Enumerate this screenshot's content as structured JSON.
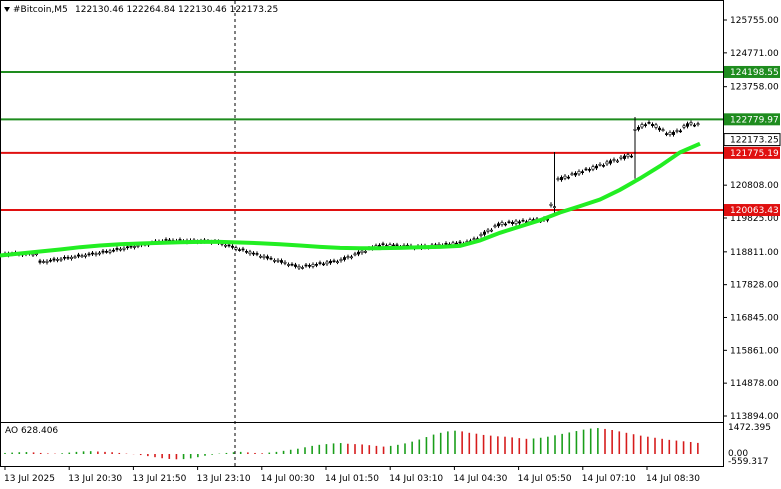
{
  "header": {
    "symbol": "#Bitcoin,M5",
    "ohlc": "122130.46 122264.84 122130.46 122173.25"
  },
  "price_axis": {
    "labels": [
      "125755.00",
      "124771.00",
      "123758.00",
      "120808.00",
      "119825.00",
      "118811.00",
      "117828.00",
      "116845.00",
      "115861.00",
      "114878.00",
      "113894.00"
    ]
  },
  "levels": [
    {
      "label": "124198.55",
      "color": "#1e8c1e"
    },
    {
      "label": "122779.97",
      "color": "#1e8c1e"
    },
    {
      "label": "121775.19",
      "color": "#e01010"
    },
    {
      "label": "120063.43",
      "color": "#e01010"
    }
  ],
  "current_price": {
    "label": "122173.25"
  },
  "indicator": {
    "title": "AO 628.406",
    "axis_labels": [
      "1472.395",
      "0.00",
      "-559.317"
    ]
  },
  "time_axis": {
    "labels": [
      "13 Jul 2025",
      "13 Jul 20:30",
      "13 Jul 21:50",
      "13 Jul 23:10",
      "14 Jul 00:30",
      "14 Jul 01:50",
      "14 Jul 03:10",
      "14 Jul 04:30",
      "14 Jul 05:50",
      "14 Jul 07:10",
      "14 Jul 08:30"
    ]
  },
  "chart_data": {
    "type": "line",
    "series_line": {
      "x": [
        0,
        20,
        40,
        60,
        80,
        100,
        120,
        140,
        160,
        180,
        200,
        220,
        240,
        260,
        280,
        300,
        320,
        340,
        360,
        380,
        400,
        420,
        440,
        460,
        480,
        500,
        520,
        540,
        560,
        580,
        600,
        620,
        640,
        660,
        680,
        700
      ],
      "y": [
        118700,
        118760,
        118820,
        118880,
        118950,
        119000,
        119040,
        119060,
        119080,
        119100,
        119110,
        119110,
        119090,
        119070,
        119040,
        119000,
        118960,
        118930,
        118920,
        118920,
        118930,
        118950,
        118960,
        118990,
        119150,
        119380,
        119570,
        119760,
        119990,
        120180,
        120380,
        120670,
        121010,
        121380,
        121790,
        122050
      ]
    },
    "ylim": [
      113800,
      126000
    ],
    "ao": {
      "values": [
        60,
        80,
        100,
        110,
        90,
        60,
        30,
        20,
        40,
        80,
        120,
        150,
        160,
        140,
        120,
        100,
        60,
        20,
        -10,
        -60,
        -120,
        -180,
        -240,
        -280,
        -300,
        -290,
        -250,
        -180,
        -100,
        -40,
        20,
        60,
        100,
        120,
        90,
        60,
        40,
        80,
        120,
        180,
        240,
        300,
        380,
        460,
        520,
        560,
        600,
        620,
        580,
        560,
        540,
        500,
        460,
        420,
        460,
        520,
        600,
        700,
        820,
        960,
        1100,
        1200,
        1280,
        1320,
        1280,
        1200,
        1150,
        1080,
        1040,
        1000,
        980,
        940,
        900,
        860,
        880,
        920,
        980,
        1060,
        1140,
        1220,
        1300,
        1380,
        1440,
        1470,
        1420,
        1360,
        1280,
        1200,
        1120,
        1040,
        980,
        920,
        860,
        800,
        760,
        720,
        680,
        628
      ]
    }
  }
}
